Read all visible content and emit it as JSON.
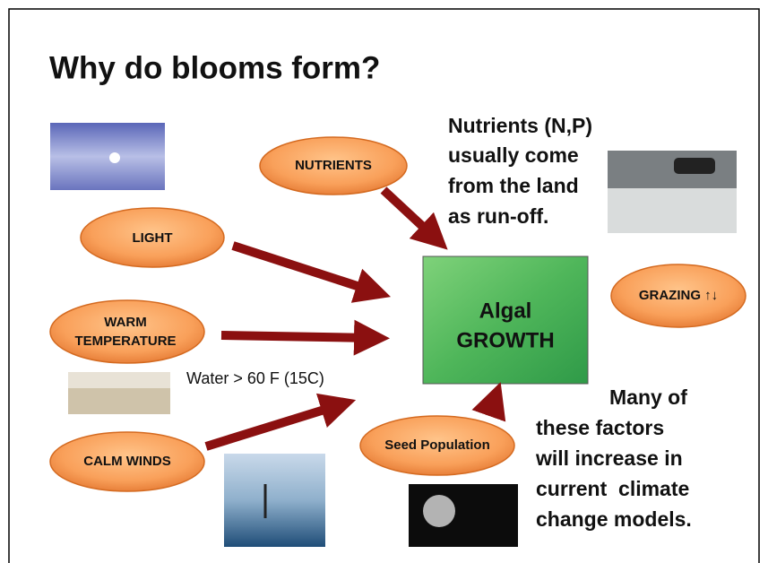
{
  "title": "Why do blooms form?",
  "factors": [
    {
      "label": "NUTRIENTS"
    },
    {
      "label": "LIGHT"
    },
    {
      "label_lines": [
        "WARM",
        "TEMPERATURE"
      ]
    },
    {
      "label": "CALM WINDS"
    },
    {
      "label": "Seed Population"
    },
    {
      "label": "GRAZING ↑↓"
    }
  ],
  "center": {
    "label_lines": [
      "Algal",
      "GROWTH"
    ]
  },
  "notes": {
    "water": "Water > 60 F (15C)",
    "nutrients": [
      "Nutrients (N,P)",
      "usually come",
      "from the land",
      "as run-off."
    ],
    "climate": [
      "Many of",
      "these factors",
      "will increase in",
      "current  climate",
      "change models."
    ]
  }
}
